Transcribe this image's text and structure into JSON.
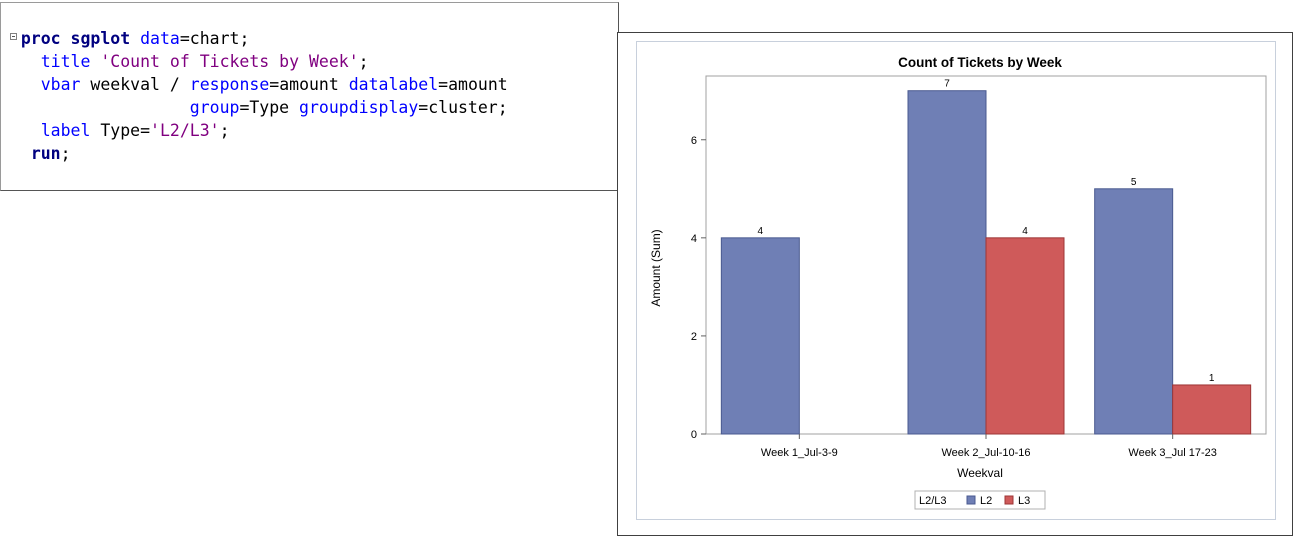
{
  "editor": {
    "lines": [
      [
        {
          "t": "proc sgplot",
          "c": "kw-bold"
        },
        {
          "t": " ",
          "c": "plain"
        },
        {
          "t": "data",
          "c": "kw-blue"
        },
        {
          "t": "=chart;",
          "c": "plain"
        }
      ],
      [
        {
          "t": "  ",
          "c": "plain"
        },
        {
          "t": "title",
          "c": "kw-blue"
        },
        {
          "t": " ",
          "c": "plain"
        },
        {
          "t": "'Count of Tickets by Week'",
          "c": "str"
        },
        {
          "t": ";",
          "c": "plain"
        }
      ],
      [
        {
          "t": "  ",
          "c": "plain"
        },
        {
          "t": "vbar",
          "c": "kw-blue"
        },
        {
          "t": " weekval / ",
          "c": "plain"
        },
        {
          "t": "response",
          "c": "kw-blue"
        },
        {
          "t": "=amount ",
          "c": "plain"
        },
        {
          "t": "datalabel",
          "c": "kw-blue"
        },
        {
          "t": "=amount",
          "c": "plain"
        }
      ],
      [
        {
          "t": "                 ",
          "c": "plain"
        },
        {
          "t": "group",
          "c": "kw-blue"
        },
        {
          "t": "=Type ",
          "c": "plain"
        },
        {
          "t": "groupdisplay",
          "c": "kw-blue"
        },
        {
          "t": "=cluster;",
          "c": "plain"
        }
      ],
      [
        {
          "t": "  ",
          "c": "plain"
        },
        {
          "t": "label",
          "c": "kw-blue"
        },
        {
          "t": " Type=",
          "c": "plain"
        },
        {
          "t": "'L2/L3'",
          "c": "str"
        },
        {
          "t": ";",
          "c": "plain"
        }
      ],
      [
        {
          "t": " ",
          "c": "plain"
        },
        {
          "t": "run",
          "c": "kw-bold"
        },
        {
          "t": ";",
          "c": "plain"
        }
      ]
    ]
  },
  "chart_data": {
    "type": "bar",
    "title": "Count of Tickets by Week",
    "xlabel": "Weekval",
    "ylabel": "Amount (Sum)",
    "categories": [
      "Week 1_Jul-3-9",
      "Week 2_Jul-10-16",
      "Week 3_Jul 17-23"
    ],
    "series": [
      {
        "name": "L2",
        "color": "#6f7fb5",
        "stroke": "#4a5a90",
        "values": [
          4,
          7,
          5
        ]
      },
      {
        "name": "L3",
        "color": "#cf5a5a",
        "stroke": "#9e3535",
        "values": [
          null,
          4,
          1
        ]
      }
    ],
    "ylim": [
      0,
      7.3
    ],
    "yticks": [
      0,
      2,
      4,
      6
    ],
    "legend_title": "L2/L3",
    "legend_position": "bottom",
    "grid": false
  }
}
